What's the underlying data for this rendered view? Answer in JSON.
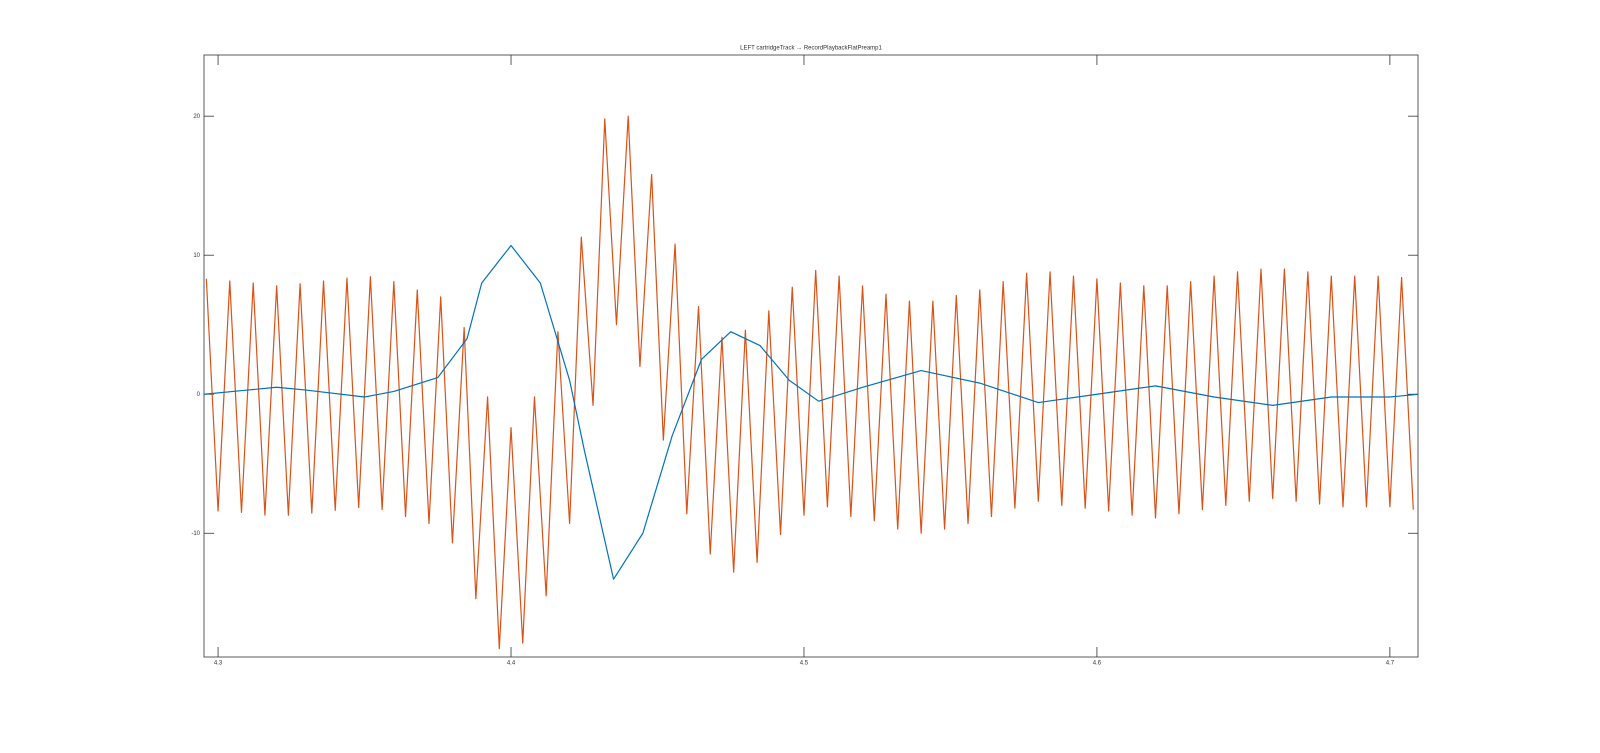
{
  "chart_data": {
    "type": "line",
    "title": "LEFT   cartridgeTrack → RecordPlaybackFlatPreamp1",
    "xlim": [
      4.2952,
      4.7096
    ],
    "xticks": [
      4.3,
      4.4,
      4.5,
      4.6,
      4.7
    ],
    "ylim": [
      -18.9,
      24.4
    ],
    "yticks": [
      -10,
      0,
      10,
      20
    ],
    "grid": false,
    "series": [
      {
        "color": "#d95319",
        "x": [
          4.296,
          4.3,
          4.304,
          4.308,
          4.312,
          4.316,
          4.32,
          4.324,
          4.328,
          4.332,
          4.336,
          4.34,
          4.344,
          4.348,
          4.352,
          4.356,
          4.36,
          4.364,
          4.368,
          4.372,
          4.376,
          4.38,
          4.384,
          4.388,
          4.392,
          4.396,
          4.4,
          4.404,
          4.408,
          4.412,
          4.416,
          4.42,
          4.424,
          4.428,
          4.432,
          4.436,
          4.44,
          4.444,
          4.448,
          4.452,
          4.456,
          4.46,
          4.464,
          4.468,
          4.472,
          4.476,
          4.48,
          4.484,
          4.488,
          4.492,
          4.496,
          4.5,
          4.504,
          4.508,
          4.512,
          4.516,
          4.52,
          4.524,
          4.528,
          4.532,
          4.536,
          4.54,
          4.544,
          4.548,
          4.552,
          4.556,
          4.56,
          4.564,
          4.568,
          4.572,
          4.576,
          4.58,
          4.584,
          4.588,
          4.592,
          4.596,
          4.6,
          4.604,
          4.608,
          4.612,
          4.616,
          4.62,
          4.624,
          4.628,
          4.632,
          4.636,
          4.64,
          4.644,
          4.648,
          4.652,
          4.656,
          4.66,
          4.664,
          4.668,
          4.672,
          4.676,
          4.68,
          4.684,
          4.688,
          4.692,
          4.696,
          4.7,
          4.704,
          4.708
        ],
        "values": [
          8.3,
          -8.4,
          8.15,
          -8.5,
          8.0,
          -8.7,
          7.8,
          -8.7,
          7.95,
          -8.55,
          8.15,
          -8.35,
          8.35,
          -8.15,
          8.45,
          -8.3,
          8.1,
          -8.8,
          7.5,
          -9.3,
          7.0,
          -10.7,
          4.8,
          -14.7,
          -0.2,
          -18.3,
          -2.4,
          -17.9,
          -0.2,
          -14.5,
          4.5,
          -9.3,
          11.3,
          -0.8,
          19.8,
          5.0,
          20.0,
          2.0,
          15.8,
          -3.3,
          10.8,
          -8.6,
          6.3,
          -11.5,
          4.1,
          -12.8,
          4.6,
          -12.1,
          6.0,
          -10.1,
          7.7,
          -8.7,
          8.9,
          -8.1,
          8.5,
          -8.8,
          7.8,
          -9.1,
          7.2,
          -9.7,
          6.7,
          -10.0,
          6.7,
          -9.7,
          7.1,
          -9.3,
          7.5,
          -8.8,
          8.1,
          -8.2,
          8.7,
          -7.7,
          8.8,
          -8.0,
          8.5,
          -8.2,
          8.3,
          -8.4,
          8.0,
          -8.7,
          7.8,
          -8.9,
          7.8,
          -8.6,
          8.1,
          -8.3,
          8.5,
          -8.0,
          8.8,
          -7.7,
          9.0,
          -7.5,
          9.0,
          -7.7,
          8.8,
          -7.9,
          8.5,
          -8.1,
          8.5,
          -8.1,
          8.5,
          -8.1,
          8.4,
          -8.3
        ]
      },
      {
        "color": "#0072bd",
        "x": [
          4.2952,
          4.31,
          4.32,
          4.33,
          4.35,
          4.36,
          4.375,
          4.385,
          4.39,
          4.4,
          4.41,
          4.42,
          4.425,
          4.435,
          4.445,
          4.455,
          4.465,
          4.475,
          4.485,
          4.495,
          4.505,
          4.52,
          4.54,
          4.56,
          4.58,
          4.6,
          4.62,
          4.64,
          4.66,
          4.68,
          4.7,
          4.7096
        ],
        "values": [
          0,
          0.3,
          0.5,
          0.3,
          -0.2,
          0.2,
          1.2,
          4,
          8,
          10.7,
          8,
          1,
          -4,
          -13.3,
          -10,
          -3,
          2.5,
          4.5,
          3.5,
          1,
          -0.5,
          0.5,
          1.7,
          0.8,
          -0.6,
          0,
          0.6,
          -0.2,
          -0.8,
          -0.2,
          -0.2,
          0
        ]
      }
    ]
  }
}
